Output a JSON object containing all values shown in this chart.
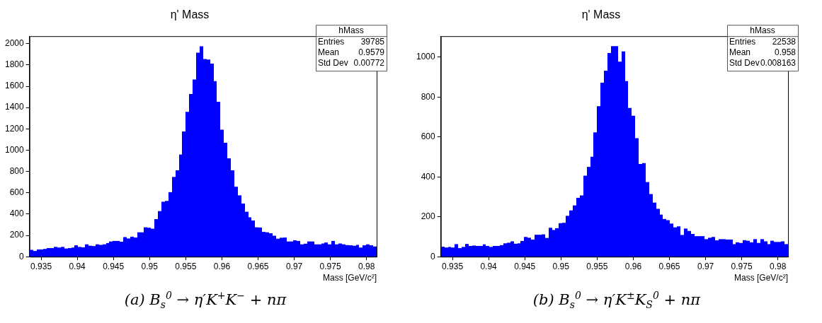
{
  "chart_data": [
    {
      "type": "histogram",
      "title": "η' Mass",
      "xlabel": "Mass [GeV/c²]",
      "color": "#0000ff",
      "bins": [
        0.9334,
        0.93388,
        0.93436,
        0.93484,
        0.93532,
        0.9358,
        0.93628,
        0.93676,
        0.93724,
        0.93772,
        0.9382,
        0.93868,
        0.93916,
        0.93964,
        0.94012,
        0.9406,
        0.94108,
        0.94156,
        0.94204,
        0.94252,
        0.943,
        0.94348,
        0.94396,
        0.94444,
        0.94492,
        0.9454,
        0.94588,
        0.94636,
        0.94684,
        0.94732,
        0.9478,
        0.94828,
        0.94876,
        0.94924,
        0.94972,
        0.9502,
        0.95068,
        0.95116,
        0.95164,
        0.95212,
        0.9526,
        0.95308,
        0.95356,
        0.95404,
        0.95452,
        0.955,
        0.95548,
        0.95596,
        0.95644,
        0.95692,
        0.9574,
        0.95788,
        0.95836,
        0.95884,
        0.95932,
        0.9598,
        0.96028,
        0.96076,
        0.96124,
        0.96172,
        0.9622,
        0.96268,
        0.96316,
        0.96364,
        0.96412,
        0.9646,
        0.96508,
        0.96556,
        0.96604,
        0.96652,
        0.967,
        0.96748,
        0.96796,
        0.96844,
        0.96892,
        0.9694,
        0.96988,
        0.97036,
        0.97084,
        0.97132,
        0.9718,
        0.97228,
        0.97276,
        0.97324,
        0.97372,
        0.9742,
        0.97468,
        0.97516,
        0.97564,
        0.97612,
        0.9766,
        0.97708,
        0.97756,
        0.97804,
        0.97852,
        0.979,
        0.97948,
        0.97996,
        0.98044,
        0.98092,
        0.9814
      ],
      "values": [
        64,
        54,
        68,
        68,
        73,
        81,
        81,
        92,
        86,
        92,
        77,
        81,
        86,
        107,
        92,
        88,
        116,
        103,
        100,
        116,
        111,
        116,
        128,
        143,
        148,
        148,
        141,
        184,
        171,
        188,
        180,
        229,
        229,
        276,
        272,
        263,
        353,
        428,
        516,
        524,
        606,
        749,
        811,
        959,
        1175,
        1359,
        1528,
        1663,
        1915,
        1975,
        1855,
        1851,
        1813,
        1648,
        1455,
        1192,
        1070,
        924,
        811,
        657,
        576,
        499,
        422,
        370,
        340,
        276,
        274,
        233,
        229,
        220,
        197,
        169,
        178,
        180,
        143,
        143,
        154,
        148,
        116,
        122,
        143,
        143,
        116,
        116,
        124,
        133,
        116,
        148,
        116,
        124,
        116,
        109,
        107,
        103,
        111,
        86,
        107,
        116,
        107,
        96
      ],
      "xlim": [
        0.9334,
        0.9814
      ],
      "xticks": [
        {
          "value": 0.935,
          "label": "0.935"
        },
        {
          "value": 0.94,
          "label": "0.94"
        },
        {
          "value": 0.945,
          "label": "0.945"
        },
        {
          "value": 0.95,
          "label": "0.95"
        },
        {
          "value": 0.955,
          "label": "0.955"
        },
        {
          "value": 0.96,
          "label": "0.96"
        },
        {
          "value": 0.965,
          "label": "0.965"
        },
        {
          "value": 0.97,
          "label": "0.97"
        },
        {
          "value": 0.975,
          "label": "0.975"
        },
        {
          "value": 0.98,
          "label": "0.98"
        }
      ],
      "ylim": [
        0,
        2070
      ],
      "yticks": [
        0,
        200,
        400,
        600,
        800,
        1000,
        1200,
        1400,
        1600,
        1800,
        2000
      ],
      "annotations": [
        "hMass",
        "Entries",
        "39785",
        "Mean",
        "0.9579",
        "Std Dev",
        "0.00772",
        "(a) B$_{s}$$^{0}$ → η′K$^{+}$K$^{−}$ + nπ"
      ]
    },
    {
      "type": "histogram",
      "title": "η' Mass",
      "xlabel": "Mass [GeV/c²]",
      "color": "#0000ff",
      "bins": [
        0.9334,
        0.93388,
        0.93436,
        0.93484,
        0.93532,
        0.9358,
        0.93628,
        0.93676,
        0.93724,
        0.93772,
        0.9382,
        0.93868,
        0.93916,
        0.93964,
        0.94012,
        0.9406,
        0.94108,
        0.94156,
        0.94204,
        0.94252,
        0.943,
        0.94348,
        0.94396,
        0.94444,
        0.94492,
        0.9454,
        0.94588,
        0.94636,
        0.94684,
        0.94732,
        0.9478,
        0.94828,
        0.94876,
        0.94924,
        0.94972,
        0.9502,
        0.95068,
        0.95116,
        0.95164,
        0.95212,
        0.9526,
        0.95308,
        0.95356,
        0.95404,
        0.95452,
        0.955,
        0.95548,
        0.95596,
        0.95644,
        0.95692,
        0.9574,
        0.95788,
        0.95836,
        0.95884,
        0.95932,
        0.9598,
        0.96028,
        0.96076,
        0.96124,
        0.96172,
        0.9622,
        0.96268,
        0.96316,
        0.96364,
        0.96412,
        0.9646,
        0.96508,
        0.96556,
        0.96604,
        0.96652,
        0.967,
        0.96748,
        0.96796,
        0.96844,
        0.96892,
        0.9694,
        0.96988,
        0.97036,
        0.97084,
        0.97132,
        0.9718,
        0.97228,
        0.97276,
        0.97324,
        0.97372,
        0.9742,
        0.97468,
        0.97516,
        0.97564,
        0.97612,
        0.9766,
        0.97708,
        0.97756,
        0.97804,
        0.97852,
        0.979,
        0.97948,
        0.97996,
        0.98044,
        0.98092,
        0.9814
      ],
      "values": [
        50,
        46,
        49,
        46,
        63,
        43,
        49,
        64,
        54,
        56,
        54,
        54,
        62,
        54,
        49,
        54,
        54,
        58,
        67,
        70,
        77,
        65,
        67,
        79,
        99,
        95,
        86,
        110,
        110,
        112,
        94,
        145,
        134,
        143,
        168,
        170,
        205,
        232,
        257,
        295,
        307,
        406,
        450,
        501,
        623,
        754,
        872,
        932,
        1021,
        1055,
        1055,
        977,
        1029,
        880,
        745,
        706,
        594,
        465,
        469,
        374,
        314,
        271,
        240,
        211,
        189,
        183,
        166,
        147,
        152,
        109,
        141,
        129,
        114,
        103,
        103,
        103,
        88,
        95,
        99,
        82,
        88,
        88,
        86,
        86,
        63,
        72,
        69,
        83,
        80,
        72,
        88,
        69,
        88,
        77,
        63,
        80,
        74,
        74,
        77,
        63
      ],
      "xlim": [
        0.9334,
        0.9814
      ],
      "xticks": [
        {
          "value": 0.935,
          "label": "0.935"
        },
        {
          "value": 0.94,
          "label": "0.94"
        },
        {
          "value": 0.945,
          "label": "0.945"
        },
        {
          "value": 0.95,
          "label": "0.95"
        },
        {
          "value": 0.955,
          "label": "0.955"
        },
        {
          "value": 0.96,
          "label": "0.96"
        },
        {
          "value": 0.965,
          "label": "0.965"
        },
        {
          "value": 0.97,
          "label": "0.97"
        },
        {
          "value": 0.975,
          "label": "0.975"
        },
        {
          "value": 0.98,
          "label": "0.98"
        }
      ],
      "ylim": [
        0,
        1105
      ],
      "yticks": [
        0,
        200,
        400,
        600,
        800,
        1000
      ],
      "annotations": [
        "hMass",
        "Entries",
        "22538",
        "Mean",
        "0.958",
        "Std Dev",
        "0.008163",
        "(b) B$_{s}$$^{0}$ → η′K$^{±}$K$_{S}$$^{0}$ + nπ"
      ]
    }
  ]
}
